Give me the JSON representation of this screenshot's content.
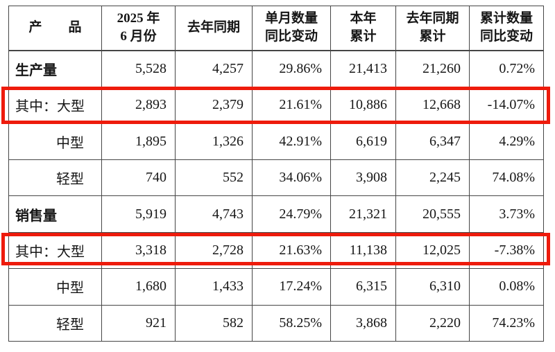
{
  "colors": {
    "table_border": "#454545",
    "text": "#161616",
    "highlight_red": "#ee1b0c"
  },
  "table": {
    "columns": [
      {
        "id": "product",
        "lines": [
          "产　　品"
        ]
      },
      {
        "id": "month-2025-06",
        "lines": [
          "2025 年",
          "6 月份"
        ]
      },
      {
        "id": "last-year-same-period",
        "lines": [
          "去年同期"
        ]
      },
      {
        "id": "monthly-qty-yoy",
        "lines": [
          "单月数量",
          "同比变动"
        ]
      },
      {
        "id": "ytd-total",
        "lines": [
          "本年",
          "累计"
        ]
      },
      {
        "id": "last-year-ytd",
        "lines": [
          "去年同期",
          "累计"
        ]
      },
      {
        "id": "cumulative-qty-yoy",
        "lines": [
          "累计数量",
          "同比变动"
        ]
      }
    ],
    "rows": [
      {
        "id": "production-total",
        "label": "生产量",
        "bold": true,
        "indent": false,
        "highlighted": false,
        "values": [
          "5,528",
          "4,257",
          "29.86%",
          "21,413",
          "21,260",
          "0.72%"
        ]
      },
      {
        "id": "production-large",
        "label": "其中：大型",
        "bold": false,
        "indent": false,
        "highlighted": true,
        "values": [
          "2,893",
          "2,379",
          "21.61%",
          "10,886",
          "12,668",
          "-14.07%"
        ]
      },
      {
        "id": "production-medium",
        "label": "中型",
        "bold": false,
        "indent": true,
        "highlighted": false,
        "values": [
          "1,895",
          "1,326",
          "42.91%",
          "6,619",
          "6,347",
          "4.29%"
        ]
      },
      {
        "id": "production-light",
        "label": "轻型",
        "bold": false,
        "indent": true,
        "highlighted": false,
        "values": [
          "740",
          "552",
          "34.06%",
          "3,908",
          "2,245",
          "74.08%"
        ]
      },
      {
        "id": "sales-total",
        "label": "销售量",
        "bold": true,
        "indent": false,
        "highlighted": false,
        "values": [
          "5,919",
          "4,743",
          "24.79%",
          "21,321",
          "20,555",
          "3.73%"
        ]
      },
      {
        "id": "sales-large",
        "label": "其中：大型",
        "bold": false,
        "indent": false,
        "highlighted": true,
        "values": [
          "3,318",
          "2,728",
          "21.63%",
          "11,138",
          "12,025",
          "-7.38%"
        ]
      },
      {
        "id": "sales-medium",
        "label": "中型",
        "bold": false,
        "indent": true,
        "highlighted": false,
        "values": [
          "1,680",
          "1,433",
          "17.24%",
          "6,315",
          "6,310",
          "0.08%"
        ]
      },
      {
        "id": "sales-light",
        "label": "轻型",
        "bold": false,
        "indent": true,
        "highlighted": false,
        "values": [
          "921",
          "582",
          "58.25%",
          "3,868",
          "2,220",
          "74.23%"
        ]
      }
    ]
  }
}
